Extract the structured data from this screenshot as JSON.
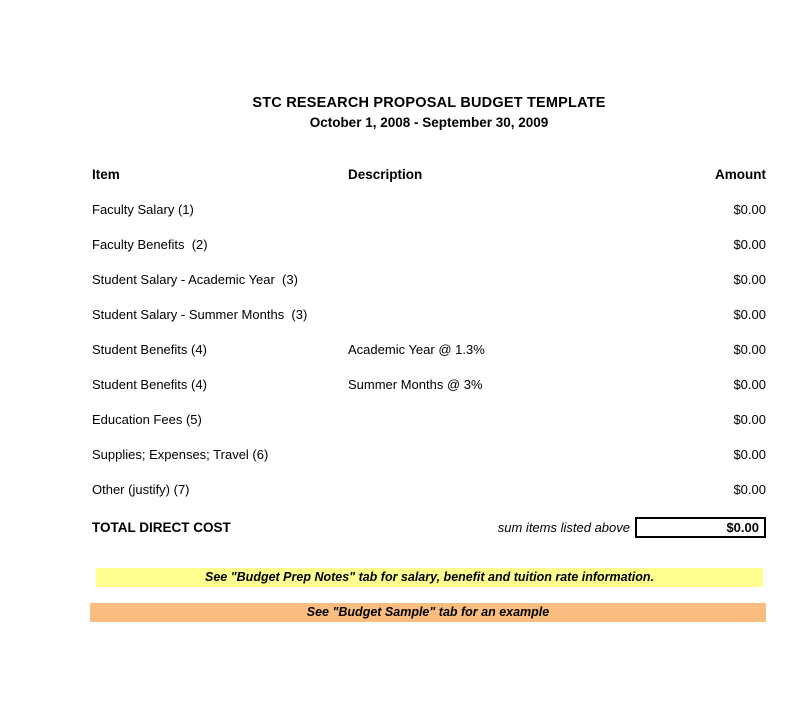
{
  "document": {
    "title": "STC RESEARCH PROPOSAL BUDGET TEMPLATE",
    "date_range": "October 1, 2008 - September 30, 2009"
  },
  "table": {
    "headers": {
      "item": "Item",
      "description": "Description",
      "amount": "Amount"
    },
    "rows": [
      {
        "item": "Faculty Salary (1)",
        "description": "",
        "amount": "$0.00"
      },
      {
        "item": "Faculty Benefits  (2)",
        "description": "",
        "amount": "$0.00"
      },
      {
        "item": "Student Salary - Academic Year  (3)",
        "description": "",
        "amount": "$0.00"
      },
      {
        "item": "Student Salary - Summer Months  (3)",
        "description": "",
        "amount": "$0.00"
      },
      {
        "item": "Student Benefits (4)",
        "description": "Academic Year @ 1.3%",
        "amount": "$0.00"
      },
      {
        "item": "Student Benefits (4)",
        "description": "Summer Months @ 3%",
        "amount": "$0.00"
      },
      {
        "item": "Education Fees (5)",
        "description": "",
        "amount": "$0.00"
      },
      {
        "item": "Supplies; Expenses; Travel (6)",
        "description": "",
        "amount": "$0.00"
      },
      {
        "item": "Other (justify) (7)",
        "description": "",
        "amount": "$0.00"
      }
    ],
    "total": {
      "label": "TOTAL DIRECT COST",
      "note": "sum items listed above",
      "amount": "$0.00"
    }
  },
  "notes": [
    {
      "text": "See \"Budget Prep Notes\" tab for salary, benefit and tuition rate information.",
      "background": "#ffff8f"
    },
    {
      "text": "See \"Budget Sample\" tab for an example",
      "background": "#f9be7f"
    }
  ]
}
